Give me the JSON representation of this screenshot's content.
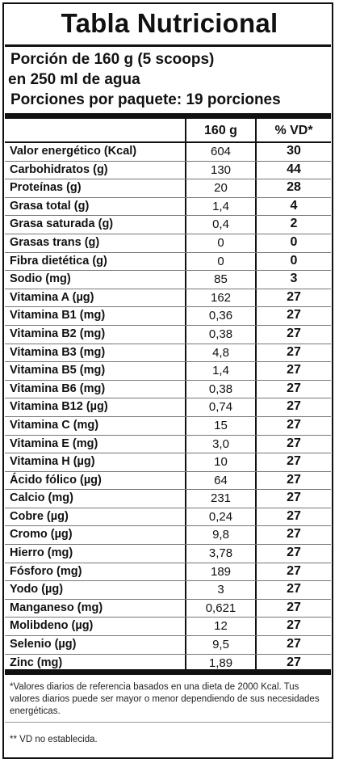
{
  "title": "Tabla Nutricional",
  "serving": {
    "line1": "Porción de 160 g (5 scoops)",
    "line2": "en 250 ml de agua",
    "line3": "Porciones por paquete: 19 porciones"
  },
  "header": {
    "amount": "160 g",
    "vd": "% VD*"
  },
  "rows": [
    {
      "name": "Valor energético (Kcal)",
      "amount": "604",
      "vd": "30"
    },
    {
      "name": "Carbohidratos (g)",
      "amount": "130",
      "vd": "44"
    },
    {
      "name": "Proteínas (g)",
      "amount": "20",
      "vd": "28"
    },
    {
      "name": "Grasa total (g)",
      "amount": "1,4",
      "vd": "4"
    },
    {
      "name": "Grasa saturada (g)",
      "amount": "0,4",
      "vd": "2"
    },
    {
      "name": "Grasas trans (g)",
      "amount": "0",
      "vd": "0"
    },
    {
      "name": "Fibra dietética (g)",
      "amount": "0",
      "vd": "0"
    },
    {
      "name": "Sodio (mg)",
      "amount": "85",
      "vd": "3"
    },
    {
      "name": "Vitamina A (µg)",
      "amount": "162",
      "vd": "27"
    },
    {
      "name": "Vitamina B1 (mg)",
      "amount": "0,36",
      "vd": "27"
    },
    {
      "name": "Vitamina B2 (mg)",
      "amount": "0,38",
      "vd": "27"
    },
    {
      "name": "Vitamina B3 (mg)",
      "amount": "4,8",
      "vd": "27"
    },
    {
      "name": "Vitamina B5 (mg)",
      "amount": "1,4",
      "vd": "27"
    },
    {
      "name": "Vitamina B6 (mg)",
      "amount": "0,38",
      "vd": "27"
    },
    {
      "name": "Vitamina B12 (µg)",
      "amount": "0,74",
      "vd": "27"
    },
    {
      "name": "Vitamina C (mg)",
      "amount": "15",
      "vd": "27"
    },
    {
      "name": "Vitamina E (mg)",
      "amount": "3,0",
      "vd": "27"
    },
    {
      "name": "Vitamina H (µg)",
      "amount": "10",
      "vd": "27"
    },
    {
      "name": "Ácido fólico (µg)",
      "amount": "64",
      "vd": "27"
    },
    {
      "name": "Calcio (mg)",
      "amount": "231",
      "vd": "27"
    },
    {
      "name": "Cobre (µg)",
      "amount": "0,24",
      "vd": "27"
    },
    {
      "name": "Cromo (µg)",
      "amount": "9,8",
      "vd": "27"
    },
    {
      "name": "Hierro (mg)",
      "amount": "3,78",
      "vd": "27"
    },
    {
      "name": "Fósforo (mg)",
      "amount": "189",
      "vd": "27"
    },
    {
      "name": "Yodo (µg)",
      "amount": "3",
      "vd": "27"
    },
    {
      "name": "Manganeso (mg)",
      "amount": "0,621",
      "vd": "27"
    },
    {
      "name": "Molibdeno (µg)",
      "amount": "12",
      "vd": "27"
    },
    {
      "name": "Selenio (µg)",
      "amount": "9,5",
      "vd": "27"
    },
    {
      "name": "Zinc (mg)",
      "amount": "1,89",
      "vd": "27"
    }
  ],
  "footnote": "*Valores diarios de referencia basados en una dieta de 2000 Kcal. Tus valores diarios puede ser mayor o menor dependiendo de sus necesidades energéticas.",
  "footnote2": "** VD no establecida."
}
